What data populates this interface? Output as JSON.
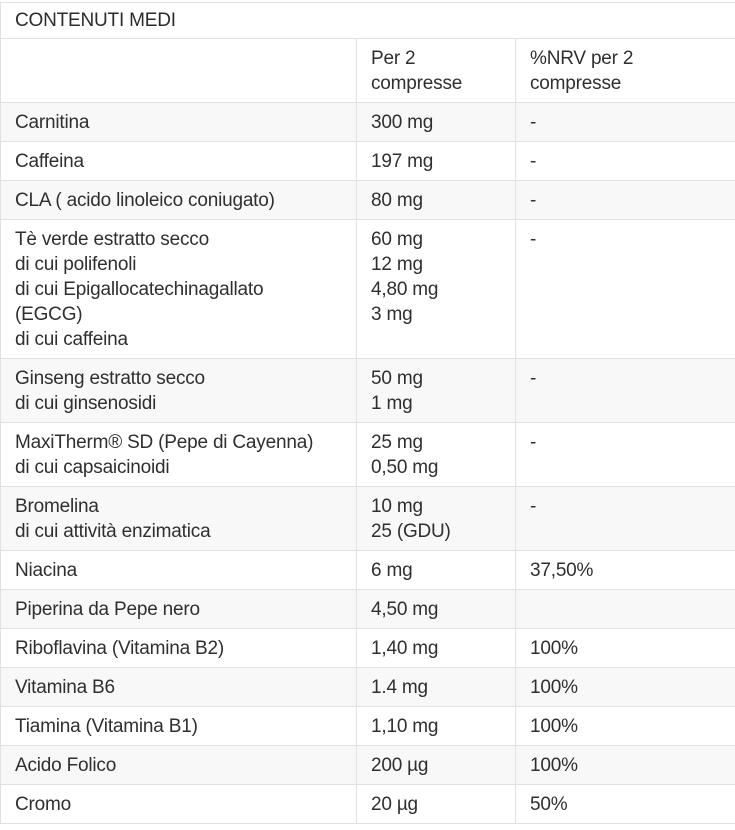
{
  "theme": {
    "border_color": "#e1e1e1",
    "stripe_color": "#f8f8f8",
    "text_color": "#2f2f2f",
    "background_color": "#ffffff"
  },
  "table": {
    "title": "CONTENUTI MEDI",
    "columns": {
      "name": "",
      "amount": "Per 2\ncompresse",
      "nrv": "%NRV per 2\ncompresse"
    },
    "rows": [
      {
        "name": "Carnitina",
        "amount": "300 mg",
        "nrv": "-"
      },
      {
        "name": "Caffeina",
        "amount": "197 mg",
        "nrv": "-"
      },
      {
        "name": "CLA ( acido linoleico coniugato)",
        "amount": "80 mg",
        "nrv": "-"
      },
      {
        "name": "Tè verde estratto secco\ndi cui polifenoli\ndi cui Epigallocatechinagallato\n(EGCG)\ndi cui caffeina",
        "amount": "60 mg\n12 mg\n4,80 mg\n3 mg",
        "nrv": "-"
      },
      {
        "name": "Ginseng estratto secco\ndi cui ginsenosidi",
        "amount": "50 mg\n1 mg",
        "nrv": "-"
      },
      {
        "name": "MaxiTherm® SD (Pepe di Cayenna)\ndi cui capsaicinoidi",
        "amount": "25 mg\n0,50 mg",
        "nrv": "-"
      },
      {
        "name": "Bromelina\ndi cui attività enzimatica",
        "amount": "10 mg\n25 (GDU)",
        "nrv": "-"
      },
      {
        "name": "Niacina",
        "amount": "6 mg",
        "nrv": "37,50%"
      },
      {
        "name": "Piperina da Pepe nero",
        "amount": "4,50 mg",
        "nrv": ""
      },
      {
        "name": "Riboflavina (Vitamina B2)",
        "amount": "1,40 mg",
        "nrv": "100%"
      },
      {
        "name": "Vitamina B6",
        "amount": "1.4 mg",
        "nrv": "100%"
      },
      {
        "name": "Tiamina (Vitamina B1)",
        "amount": "1,10 mg",
        "nrv": "100%"
      },
      {
        "name": "Acido Folico",
        "amount": "200 µg",
        "nrv": "100%"
      },
      {
        "name": "Cromo",
        "amount": "20 µg",
        "nrv": "50%"
      }
    ]
  }
}
